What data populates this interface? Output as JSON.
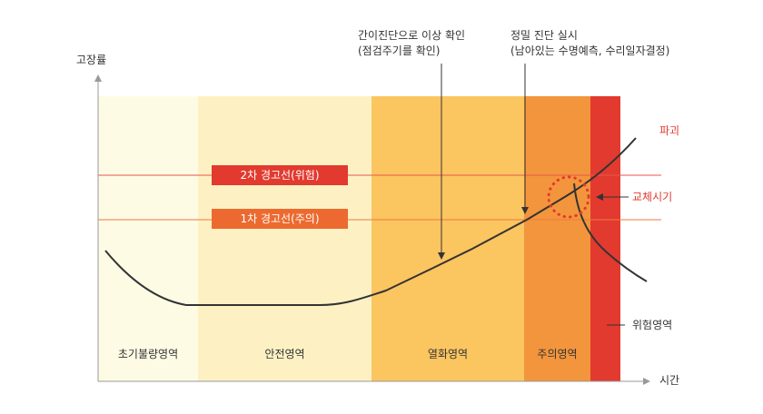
{
  "axes": {
    "y_label": "고장률",
    "x_label": "시간"
  },
  "zones": [
    {
      "id": "initial",
      "label": "초기불량영역",
      "color": "#fefbe5"
    },
    {
      "id": "safe",
      "label": "안전영역",
      "color": "#fdf1c4"
    },
    {
      "id": "degradation",
      "label": "열화영역",
      "color": "#fbc560"
    },
    {
      "id": "caution",
      "label": "주의영역",
      "color": "#f3953c"
    },
    {
      "id": "danger",
      "label": "위험영역",
      "color": "#e23a2f"
    }
  ],
  "warning_lines": [
    {
      "id": "second",
      "label": "2차 경고선(위험)",
      "color": "#e23a2f"
    },
    {
      "id": "first",
      "label": "1차 경고선(주의)",
      "color": "#ec6a2f"
    }
  ],
  "annotations": {
    "simple_diagnosis": {
      "line1": "간이진단으로 이상 확인",
      "line2": "(점검주기를 확인)"
    },
    "precise_diagnosis": {
      "line1": "정밀 진단 실시",
      "line2": "(남아있는 수명예측, 수리일자결정)"
    },
    "failure": "파괴",
    "replacement_time": "교체시기"
  },
  "colors": {
    "curve": "#333333",
    "axis": "#999999",
    "accent_red": "#e23a2f"
  }
}
